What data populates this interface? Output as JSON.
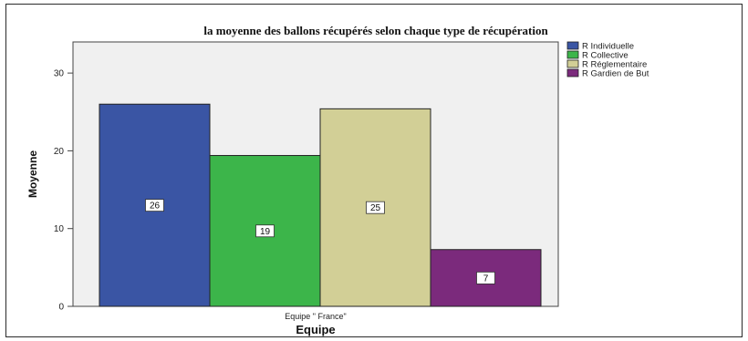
{
  "chart_data": {
    "type": "bar",
    "title": "la moyenne des ballons récupérés selon chaque type de récupération",
    "xlabel": "Equipe",
    "ylabel": "Moyenne",
    "categories": [
      "Equipe \" France\""
    ],
    "series": [
      {
        "name": "R Individuelle",
        "values": [
          26
        ],
        "label": "26",
        "color": "#3a55a4"
      },
      {
        "name": "R Collective",
        "values": [
          19.4
        ],
        "label": "19",
        "color": "#3cb54a"
      },
      {
        "name": "R Réglementaire",
        "values": [
          25.4
        ],
        "label": "25",
        "color": "#d2cf96"
      },
      {
        "name": "R Gardien de But",
        "values": [
          7.3
        ],
        "label": "7",
        "color": "#7b2a7c"
      }
    ],
    "ylim": [
      0,
      34
    ],
    "yticks": [
      0,
      10,
      20,
      30
    ],
    "grid": false,
    "legend_position": "top-right",
    "plot_background": "#f0f0f0"
  }
}
